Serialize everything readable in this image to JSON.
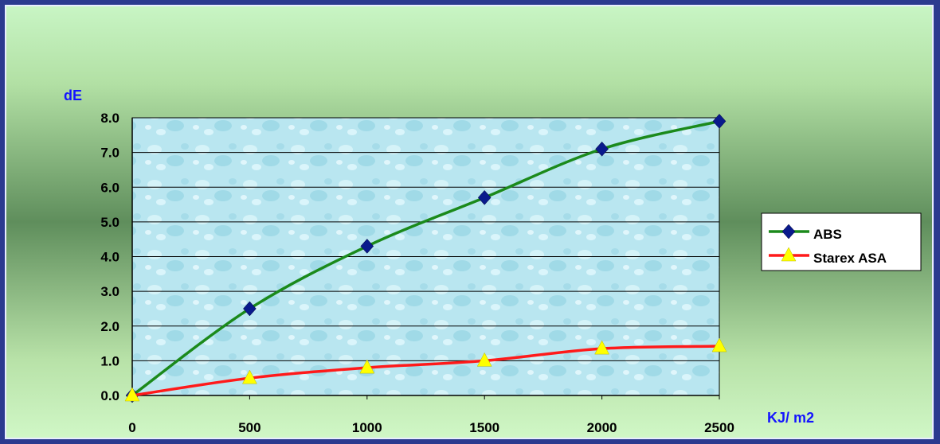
{
  "chart_data": {
    "type": "line",
    "title": "",
    "xlabel": "KJ/ m2",
    "ylabel": "dE",
    "x": [
      0,
      500,
      1000,
      1500,
      2000,
      2500
    ],
    "xlim": [
      0,
      2500
    ],
    "ylim": [
      0,
      8
    ],
    "y_ticks": [
      "0.0",
      "1.0",
      "2.0",
      "3.0",
      "4.0",
      "5.0",
      "6.0",
      "7.0",
      "8.0"
    ],
    "x_ticks": [
      "0",
      "500",
      "1000",
      "1500",
      "2000",
      "2500"
    ],
    "grid": "horizontal",
    "legend_position": "right",
    "series": [
      {
        "name": "ABS",
        "values": [
          0.0,
          2.5,
          4.3,
          5.7,
          7.1,
          7.9
        ],
        "line_color": "#1b8a1b",
        "marker": "diamond",
        "marker_color": "#0a1a8c"
      },
      {
        "name": "Starex ASA",
        "values": [
          0.0,
          0.5,
          0.8,
          1.0,
          1.35,
          1.42
        ],
        "line_color": "#ff1a1a",
        "marker": "triangle",
        "marker_color": "#ffff00"
      }
    ]
  }
}
